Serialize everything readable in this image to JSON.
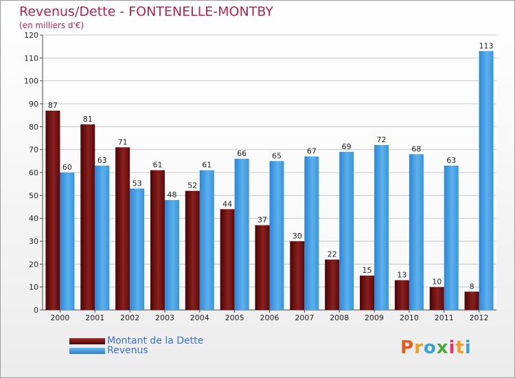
{
  "chart_data": {
    "type": "bar",
    "title": "Revenus/Dette - FONTENELLE-MONTBY",
    "subtitle": "(en milliers d'€)",
    "categories": [
      "2000",
      "2001",
      "2002",
      "2003",
      "2004",
      "2005",
      "2006",
      "2007",
      "2008",
      "2009",
      "2010",
      "2011",
      "2012"
    ],
    "series": [
      {
        "name": "Montant de la Dette",
        "color": "#7a1212",
        "values": [
          87,
          81,
          71,
          61,
          52,
          44,
          37,
          30,
          22,
          15,
          13,
          10,
          8
        ]
      },
      {
        "name": "Revenus",
        "color": "#3a96e2",
        "values": [
          60,
          63,
          53,
          48,
          61,
          66,
          65,
          67,
          69,
          72,
          68,
          63,
          113
        ]
      }
    ],
    "ylim": [
      0,
      120
    ],
    "yticks": [
      0,
      10,
      20,
      30,
      40,
      50,
      60,
      70,
      80,
      90,
      100,
      110,
      120
    ],
    "grid": true,
    "legend_position": "bottom-left"
  },
  "logo": {
    "text": "Proxiti",
    "letter_colors": [
      "#e8591c",
      "#f0a020",
      "#3aa0d8",
      "#4aa83a",
      "#e83070",
      "#f0a020",
      "#3aa0d8"
    ]
  }
}
